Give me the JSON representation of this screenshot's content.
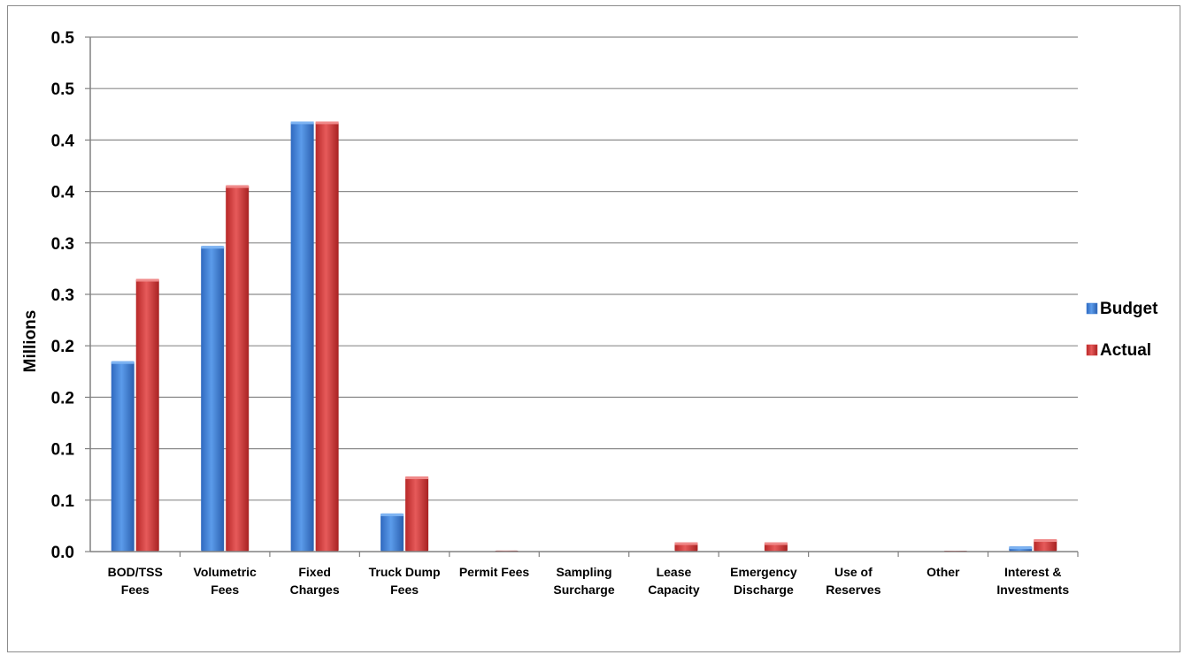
{
  "chart_data": {
    "type": "bar",
    "title": "",
    "xlabel": "",
    "ylabel": "Millions",
    "ytick_labels": [
      "0.0",
      "0.1",
      "0.1",
      "0.2",
      "0.2",
      "0.3",
      "0.3",
      "0.4",
      "0.4",
      "0.5",
      "0.5"
    ],
    "ylim": [
      0,
      0.5
    ],
    "grid": true,
    "legend_position": "right",
    "categories": [
      [
        "BOD/TSS",
        "Fees"
      ],
      [
        "Volumetric",
        "Fees"
      ],
      [
        "Fixed",
        "Charges"
      ],
      [
        "Truck Dump",
        "Fees"
      ],
      [
        "Permit Fees"
      ],
      [
        "Sampling",
        "Surcharge"
      ],
      [
        "Lease",
        "Capacity"
      ],
      [
        "Emergency",
        "Discharge"
      ],
      [
        "Use of",
        "Reserves"
      ],
      [
        "Other"
      ],
      [
        "Interest &",
        "Investments"
      ]
    ],
    "series": [
      {
        "name": "Budget",
        "color": "#3f7fd6",
        "values": [
          0.185,
          0.297,
          0.418,
          0.037,
          0,
          0,
          0,
          0,
          0,
          0,
          0.005
        ]
      },
      {
        "name": "Actual",
        "color": "#d63a3a",
        "values": [
          0.265,
          0.356,
          0.418,
          0.073,
          0.001,
          0,
          0.009,
          0.009,
          0,
          0.0005,
          0.012
        ]
      }
    ]
  }
}
